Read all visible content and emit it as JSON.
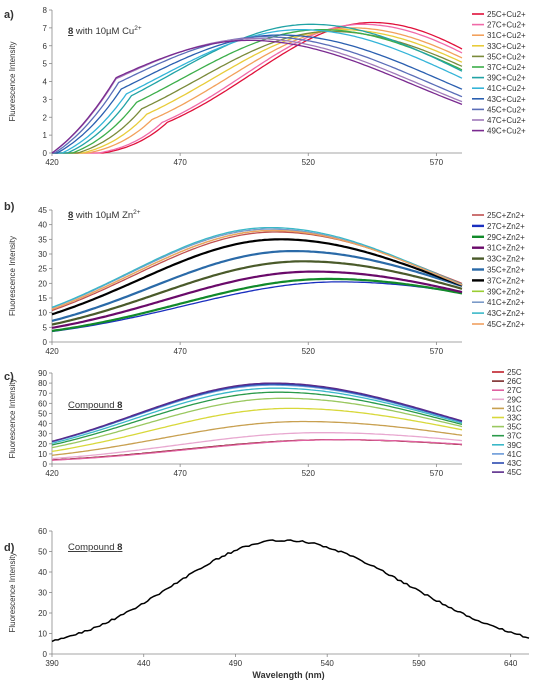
{
  "chart_data": [
    {
      "panel": "a)",
      "type": "line",
      "title_bold": "8",
      "title_rest": " with 10µM Cu",
      "title_sup": "2+",
      "ylabel": "Fluorescence Intensity",
      "xlabel": "",
      "xlim": [
        420,
        580
      ],
      "ylim": [
        0,
        8
      ],
      "xticks": [
        420,
        470,
        520,
        570
      ],
      "yticks": [
        0,
        1,
        2,
        3,
        4,
        5,
        6,
        7,
        8
      ],
      "series": [
        {
          "name": "25C+Cu2+",
          "color": "#e0103a",
          "peak": 7.3,
          "center": 545,
          "left": 47,
          "right": 52,
          "start": 440
        },
        {
          "name": "27C+Cu2+",
          "color": "#f06aa8",
          "peak": 7.2,
          "center": 541,
          "left": 46,
          "right": 55,
          "start": 438
        },
        {
          "name": "31C+Cu2+",
          "color": "#f2a15c",
          "peak": 7.0,
          "center": 537,
          "left": 48,
          "right": 58,
          "start": 434
        },
        {
          "name": "33C+Cu2+",
          "color": "#e8cc3a",
          "peak": 6.9,
          "center": 533,
          "left": 50,
          "right": 60,
          "start": 432
        },
        {
          "name": "35C+Cu2+",
          "color": "#7a8a3a",
          "peak": 6.8,
          "center": 529,
          "left": 52,
          "right": 62,
          "start": 430
        },
        {
          "name": "37C+Cu2+",
          "color": "#3cae4a",
          "peak": 6.9,
          "center": 525,
          "left": 54,
          "right": 62,
          "start": 428
        },
        {
          "name": "39C+Cu2+",
          "color": "#21a3a5",
          "peak": 7.2,
          "center": 521,
          "left": 55,
          "right": 62,
          "start": 426
        },
        {
          "name": "41C+Cu2+",
          "color": "#34b4d8",
          "peak": 6.9,
          "center": 517,
          "left": 56,
          "right": 63,
          "start": 424
        },
        {
          "name": "43C+Cu2+",
          "color": "#2a5fb0",
          "peak": 6.6,
          "center": 509,
          "left": 56,
          "right": 64,
          "start": 422
        },
        {
          "name": "45C+Cu2+",
          "color": "#5a6db8",
          "peak": 6.5,
          "center": 503,
          "left": 57,
          "right": 64,
          "start": 421
        },
        {
          "name": "47C+Cu2+",
          "color": "#a07aba",
          "peak": 6.4,
          "center": 499,
          "left": 58,
          "right": 64,
          "start": 420
        },
        {
          "name": "49C+Cu2+",
          "color": "#7a2a90",
          "peak": 6.3,
          "center": 497,
          "left": 58,
          "right": 64,
          "start": 420
        }
      ]
    },
    {
      "panel": "b)",
      "type": "line",
      "title_bold": "8",
      "title_rest": " with 10µM Zn",
      "title_sup": "2+",
      "ylabel": "Fluorescence Intensity",
      "xlabel": "",
      "xlim": [
        420,
        580
      ],
      "ylim": [
        0,
        45
      ],
      "xticks": [
        420,
        470,
        520,
        570
      ],
      "yticks": [
        0,
        5,
        10,
        15,
        20,
        25,
        30,
        35,
        40,
        45
      ],
      "series": [
        {
          "name": "25C+Zn2+",
          "color": "#c05050",
          "peak": 37.5,
          "center": 507,
          "left": 55,
          "right": 65,
          "base": 1.2
        },
        {
          "name": "27C+Zn2+",
          "color": "#1a2fbf",
          "peak": 20.5,
          "center": 532,
          "left": 60,
          "right": 75,
          "base": 0.8
        },
        {
          "name": "29C+Zn2+",
          "color": "#118a2a",
          "peak": 21.5,
          "center": 528,
          "left": 58,
          "right": 72,
          "base": 0.9
        },
        {
          "name": "31C+Zn2+",
          "color": "#6a0a6a",
          "peak": 24.0,
          "center": 522,
          "left": 57,
          "right": 70,
          "base": 1.0
        },
        {
          "name": "33C+Zn2+",
          "color": "#4a5a2a",
          "peak": 27.5,
          "center": 518,
          "left": 56,
          "right": 68,
          "base": 1.0
        },
        {
          "name": "35C+Zn2+",
          "color": "#2a6aa8",
          "peak": 31.0,
          "center": 514,
          "left": 55,
          "right": 67,
          "base": 1.1
        },
        {
          "name": "37C+Zn2+",
          "color": "#000000",
          "peak": 35.0,
          "center": 509,
          "left": 55,
          "right": 65,
          "base": 1.1
        },
        {
          "name": "39C+Zn2+",
          "color": "#9acd32",
          "peak": 38.0,
          "center": 506,
          "left": 55,
          "right": 64,
          "base": 1.2
        },
        {
          "name": "41C+Zn2+",
          "color": "#7a9ac8",
          "peak": 38.5,
          "center": 505,
          "left": 55,
          "right": 64,
          "base": 1.2
        },
        {
          "name": "43C+Zn2+",
          "color": "#3ab8c8",
          "peak": 39.0,
          "center": 505,
          "left": 55,
          "right": 64,
          "base": 1.3
        },
        {
          "name": "45C+Zn2+",
          "color": "#f0a060",
          "peak": 38.0,
          "center": 506,
          "left": 55,
          "right": 64,
          "base": 1.3
        }
      ]
    },
    {
      "panel": "c)",
      "type": "line",
      "title_bold": "8",
      "title_rest": "Compound ",
      "title_sup": "",
      "ylabel": "Fluorescence Intensity",
      "xlabel": "",
      "xlim": [
        420,
        580
      ],
      "ylim": [
        0,
        90
      ],
      "xticks": [
        420,
        470,
        520,
        570
      ],
      "yticks": [
        0,
        10,
        20,
        30,
        40,
        50,
        60,
        70,
        80,
        90
      ],
      "series": [
        {
          "name": "25C",
          "color": "#c0202a",
          "peak": 24,
          "center": 530,
          "left": 58,
          "right": 75,
          "base": 1.5
        },
        {
          "name": "26C",
          "color": "#7a2a2a",
          "peak": 24,
          "center": 530,
          "left": 58,
          "right": 75,
          "base": 1.5
        },
        {
          "name": "27C",
          "color": "#e060a0",
          "peak": 24,
          "center": 532,
          "left": 58,
          "right": 75,
          "base": 1.5
        },
        {
          "name": "29C",
          "color": "#e8a8d0",
          "peak": 31,
          "center": 525,
          "left": 56,
          "right": 72,
          "base": 1.5
        },
        {
          "name": "31C",
          "color": "#c8a050",
          "peak": 42,
          "center": 518,
          "left": 55,
          "right": 70,
          "base": 1.5
        },
        {
          "name": "33C",
          "color": "#d8d83a",
          "peak": 55,
          "center": 513,
          "left": 54,
          "right": 68,
          "base": 1.5
        },
        {
          "name": "35C",
          "color": "#9ac860",
          "peak": 65,
          "center": 510,
          "left": 54,
          "right": 66,
          "base": 1.5
        },
        {
          "name": "37C",
          "color": "#2a9a4a",
          "peak": 71,
          "center": 508,
          "left": 54,
          "right": 66,
          "base": 1.5
        },
        {
          "name": "39C",
          "color": "#3ab8c8",
          "peak": 75,
          "center": 507,
          "left": 54,
          "right": 66,
          "base": 1.5
        },
        {
          "name": "41C",
          "color": "#6a9ad8",
          "peak": 78,
          "center": 506,
          "left": 54,
          "right": 66,
          "base": 1.5
        },
        {
          "name": "43C",
          "color": "#2a4ab0",
          "peak": 79,
          "center": 506,
          "left": 54,
          "right": 66,
          "base": 1.5
        },
        {
          "name": "45C",
          "color": "#5a2a8a",
          "peak": 80,
          "center": 506,
          "left": 54,
          "right": 66,
          "base": 1.5
        }
      ]
    },
    {
      "panel": "d)",
      "type": "line",
      "title_bold": "8",
      "title_rest": "Compound ",
      "title_sup": "",
      "ylabel": "Fluorescence Intensity",
      "xlabel": "Wavelength (nm)",
      "xlim": [
        390,
        650
      ],
      "ylim": [
        0,
        60
      ],
      "xticks": [
        390,
        440,
        490,
        540,
        590,
        640
      ],
      "yticks": [
        0,
        10,
        20,
        30,
        40,
        50,
        60
      ],
      "series": [
        {
          "name": "",
          "color": "#000000",
          "peak": 55.5,
          "center": 516,
          "left": 60,
          "right": 68,
          "base": 4.0
        }
      ]
    }
  ],
  "legend_font": 8
}
